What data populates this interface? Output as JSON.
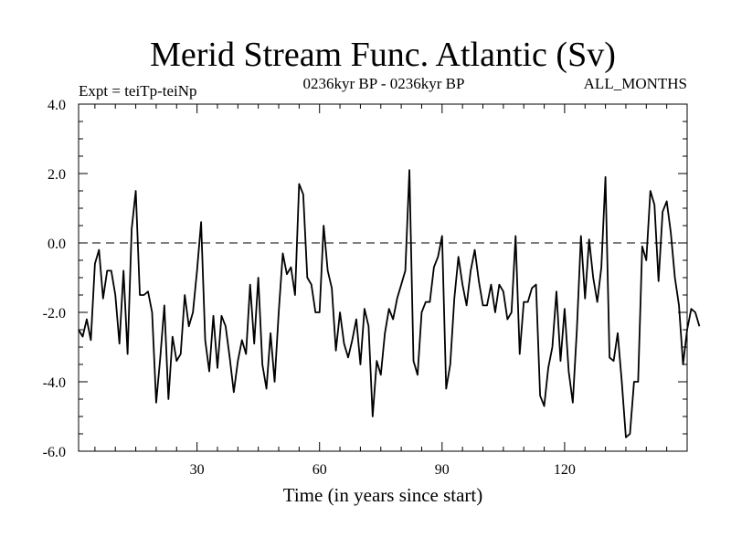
{
  "chart_data": {
    "type": "line",
    "title": "Merid Stream Func. Atlantic (Sv)",
    "subtitle_left": "Expt = teiTp-teiNp",
    "subtitle_center": "0236kyr BP - 0236kyr BP",
    "subtitle_right": "ALL_MONTHS",
    "xlabel": "Time (in years since start)",
    "ylabel": "",
    "xlim": [
      1,
      150
    ],
    "ylim": [
      -6.0,
      4.0
    ],
    "x_ticks": [
      30,
      60,
      90,
      120
    ],
    "x_tick_labels": [
      "30",
      "60",
      "90",
      "120"
    ],
    "y_ticks": [
      -6.0,
      -4.0,
      -2.0,
      0.0,
      2.0,
      4.0
    ],
    "y_tick_labels": [
      "-6.0",
      "-4.0",
      "-2.0",
      "0.0",
      "2.0",
      "4.0"
    ],
    "reference_line": 0.0,
    "series": [
      {
        "name": "teiTp-teiNp",
        "x_start": 1,
        "x_step": 1,
        "values": [
          -2.5,
          -2.7,
          -2.2,
          -2.8,
          -0.6,
          -0.2,
          -1.6,
          -0.8,
          -0.8,
          -1.5,
          -2.9,
          -0.8,
          -3.2,
          0.4,
          1.5,
          -1.5,
          -1.5,
          -1.4,
          -2.0,
          -4.6,
          -3.3,
          -1.8,
          -4.5,
          -2.7,
          -3.4,
          -3.2,
          -1.5,
          -2.4,
          -2.0,
          -0.8,
          0.6,
          -2.8,
          -3.7,
          -2.1,
          -3.6,
          -2.1,
          -2.4,
          -3.3,
          -4.3,
          -3.4,
          -2.8,
          -3.2,
          -1.2,
          -2.9,
          -1.0,
          -3.5,
          -4.2,
          -2.6,
          -4.0,
          -2.0,
          -0.3,
          -0.9,
          -0.7,
          -1.5,
          1.7,
          1.4,
          -1.0,
          -1.2,
          -2.0,
          -2.0,
          0.5,
          -0.8,
          -1.3,
          -3.1,
          -2.0,
          -2.9,
          -3.3,
          -2.8,
          -2.2,
          -3.5,
          -1.9,
          -2.4,
          -5.0,
          -3.4,
          -3.8,
          -2.6,
          -1.9,
          -2.2,
          -1.6,
          -1.2,
          -0.8,
          2.1,
          -3.4,
          -3.8,
          -2.0,
          -1.7,
          -1.7,
          -0.7,
          -0.4,
          0.2,
          -4.2,
          -3.5,
          -1.6,
          -0.4,
          -1.2,
          -1.8,
          -0.8,
          -0.2,
          -1.1,
          -1.8,
          -1.8,
          -1.2,
          -2.0,
          -1.2,
          -1.4,
          -2.2,
          -2.0,
          0.2,
          -3.2,
          -1.7,
          -1.7,
          -1.3,
          -1.2,
          -4.4,
          -4.7,
          -3.6,
          -3.0,
          -1.4,
          -3.4,
          -1.9,
          -3.7,
          -4.6,
          -2.5,
          0.2,
          -1.6,
          0.1,
          -1.0,
          -1.7,
          -0.7,
          1.9,
          -3.3,
          -3.4,
          -2.6,
          -4.0,
          -5.6,
          -5.5,
          -4.0,
          -4.0,
          -0.1,
          -0.5,
          1.5,
          1.1,
          -1.1,
          0.9,
          1.2,
          0.3,
          -1.0,
          -1.8,
          -3.5,
          -2.5,
          -1.9,
          -2.0,
          -2.4
        ]
      }
    ]
  }
}
